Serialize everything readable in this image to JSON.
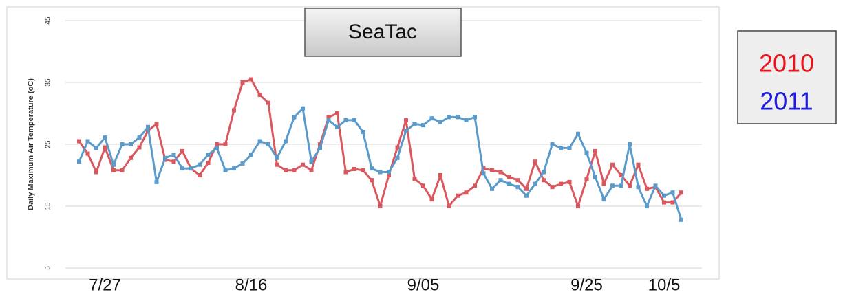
{
  "chart_data": {
    "type": "line",
    "title": "SeaTac",
    "y_label": "Daily Maximum Air Temperature (oC)",
    "categories": [
      null,
      null,
      null,
      "7/27",
      null,
      null,
      null,
      null,
      null,
      null,
      null,
      null,
      null,
      null,
      null,
      null,
      null,
      null,
      null,
      null,
      "8/16",
      null,
      null,
      null,
      null,
      null,
      null,
      null,
      null,
      null,
      null,
      null,
      null,
      null,
      null,
      null,
      null,
      null,
      null,
      null,
      "9/05",
      null,
      null,
      null,
      null,
      null,
      null,
      null,
      null,
      null,
      null,
      null,
      null,
      null,
      null,
      null,
      null,
      null,
      null,
      "9/25",
      null,
      null,
      null,
      null,
      null,
      null,
      null,
      null,
      "10/5",
      null,
      null
    ],
    "series": [
      {
        "name": "2010",
        "color": "#d9575d",
        "values": [
          25.5,
          23.5,
          20.5,
          24.5,
          20.8,
          20.8,
          22.8,
          24.5,
          27.2,
          28.3,
          22.5,
          22.2,
          23.9,
          21.1,
          20,
          22,
          25,
          25,
          30.5,
          35,
          35.5,
          33,
          31.7,
          21.7,
          20.8,
          20.8,
          21.7,
          20.8,
          25,
          29.4,
          30,
          20.5,
          21,
          20.8,
          19.2,
          15,
          20,
          24.5,
          28.9,
          19.4,
          18.3,
          16.1,
          20,
          15,
          16.7,
          17.2,
          18.3,
          21.1,
          20.8,
          20.5,
          19.7,
          19.2,
          17.8,
          22.2,
          19.2,
          18.1,
          18.6,
          18.9,
          15,
          19.4,
          23.9,
          18.6,
          21.7,
          20,
          18.3,
          21.7,
          17.8,
          18.1,
          15.6,
          15.6,
          17.2
        ]
      },
      {
        "name": "2011",
        "color": "#5b9bcb",
        "values": [
          22.2,
          25.5,
          24.4,
          26.1,
          21.7,
          25,
          25,
          26.1,
          27.8,
          18.9,
          22.8,
          23.3,
          21.1,
          21.1,
          21.7,
          23.3,
          24.4,
          20.8,
          21.1,
          21.9,
          23.3,
          25.5,
          25,
          22.8,
          25.5,
          29.4,
          30.8,
          22.2,
          24.4,
          28.9,
          27.8,
          28.9,
          28.9,
          27,
          21.1,
          20.5,
          20.5,
          22.8,
          27.2,
          28.3,
          28.1,
          29.2,
          28.6,
          29.4,
          29.4,
          28.9,
          29.4,
          20.3,
          17.8,
          19.2,
          18.6,
          18.1,
          16.7,
          18.6,
          20.5,
          25,
          24.4,
          24.4,
          26.7,
          23.6,
          19.7,
          16.1,
          18.3,
          18.3,
          25,
          18.1,
          15,
          18.3,
          16.7,
          17.2,
          12.8
        ]
      }
    ],
    "ylim": [
      5,
      45
    ],
    "yticks": [
      5,
      15,
      25,
      35,
      45
    ],
    "grid": true
  }
}
